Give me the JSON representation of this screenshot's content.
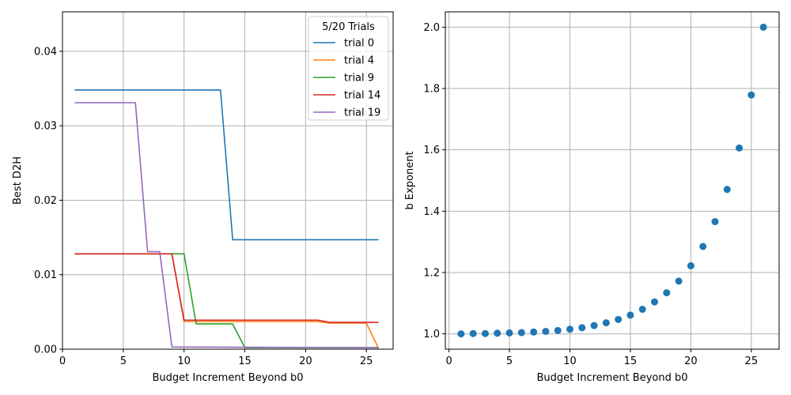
{
  "chart_data": [
    {
      "type": "line",
      "title": "",
      "xlabel": "Budget Increment Beyond b0",
      "ylabel": "Best D2H",
      "xlim": [
        0,
        27.2
      ],
      "ylim": [
        0,
        0.0453
      ],
      "xticks": [
        0,
        5,
        10,
        15,
        20,
        25
      ],
      "xtick_labels": [
        "0",
        "5",
        "10",
        "15",
        "20",
        "25"
      ],
      "yticks": [
        0,
        0.01,
        0.02,
        0.03,
        0.04
      ],
      "ytick_labels": [
        "0.00",
        "0.01",
        "0.02",
        "0.03",
        "0.04"
      ],
      "grid": true,
      "legend": {
        "title": "5/20 Trials",
        "placement": "top-right"
      },
      "series": [
        {
          "name": "trial 0",
          "color": "#1f77b4",
          "x": [
            1,
            13,
            14,
            26
          ],
          "y": [
            0.0348,
            0.0348,
            0.0147,
            0.0147
          ]
        },
        {
          "name": "trial 4",
          "color": "#ff7f0e",
          "x": [
            1,
            9,
            10,
            21,
            22,
            25,
            26
          ],
          "y": [
            0.0128,
            0.0128,
            0.0037,
            0.0037,
            0.0035,
            0.0035,
            0.0001
          ]
        },
        {
          "name": "trial 9",
          "color": "#2ca02c",
          "x": [
            1,
            10,
            11,
            14,
            15,
            26
          ],
          "y": [
            0.0128,
            0.0128,
            0.0034,
            0.0034,
            0.0002,
            0.0002
          ]
        },
        {
          "name": "trial 14",
          "color": "#d62728",
          "x": [
            1,
            9,
            10,
            21,
            22,
            26
          ],
          "y": [
            0.0128,
            0.0128,
            0.0039,
            0.0039,
            0.0036,
            0.0036
          ]
        },
        {
          "name": "trial 19",
          "color": "#9467bd",
          "x": [
            1,
            6,
            7,
            8,
            9,
            26
          ],
          "y": [
            0.0331,
            0.0331,
            0.0131,
            0.0131,
            0.0003,
            0.0002
          ]
        }
      ]
    },
    {
      "type": "scatter",
      "title": "",
      "xlabel": "Budget Increment Beyond b0",
      "ylabel": "b Exponent",
      "xlim": [
        -0.3,
        27.3
      ],
      "ylim": [
        0.95,
        2.05
      ],
      "xticks": [
        0,
        5,
        10,
        15,
        20,
        25
      ],
      "xtick_labels": [
        "0",
        "5",
        "10",
        "15",
        "20",
        "25"
      ],
      "yticks": [
        1.0,
        1.2,
        1.4,
        1.6,
        1.8,
        2.0
      ],
      "ytick_labels": [
        "1.0",
        "1.2",
        "1.4",
        "1.6",
        "1.8",
        "2.0"
      ],
      "grid": true,
      "color": "#1f77b4",
      "x": [
        1,
        2,
        3,
        4,
        5,
        6,
        7,
        8,
        9,
        10,
        11,
        12,
        13,
        14,
        15,
        16,
        17,
        18,
        19,
        20,
        21,
        22,
        23,
        24,
        25,
        26
      ],
      "y": [
        1.0,
        1.001,
        1.001,
        1.002,
        1.003,
        1.004,
        1.006,
        1.008,
        1.011,
        1.015,
        1.02,
        1.027,
        1.036,
        1.047,
        1.061,
        1.08,
        1.104,
        1.134,
        1.172,
        1.222,
        1.285,
        1.366,
        1.471,
        1.606,
        1.779,
        2.0
      ]
    }
  ]
}
